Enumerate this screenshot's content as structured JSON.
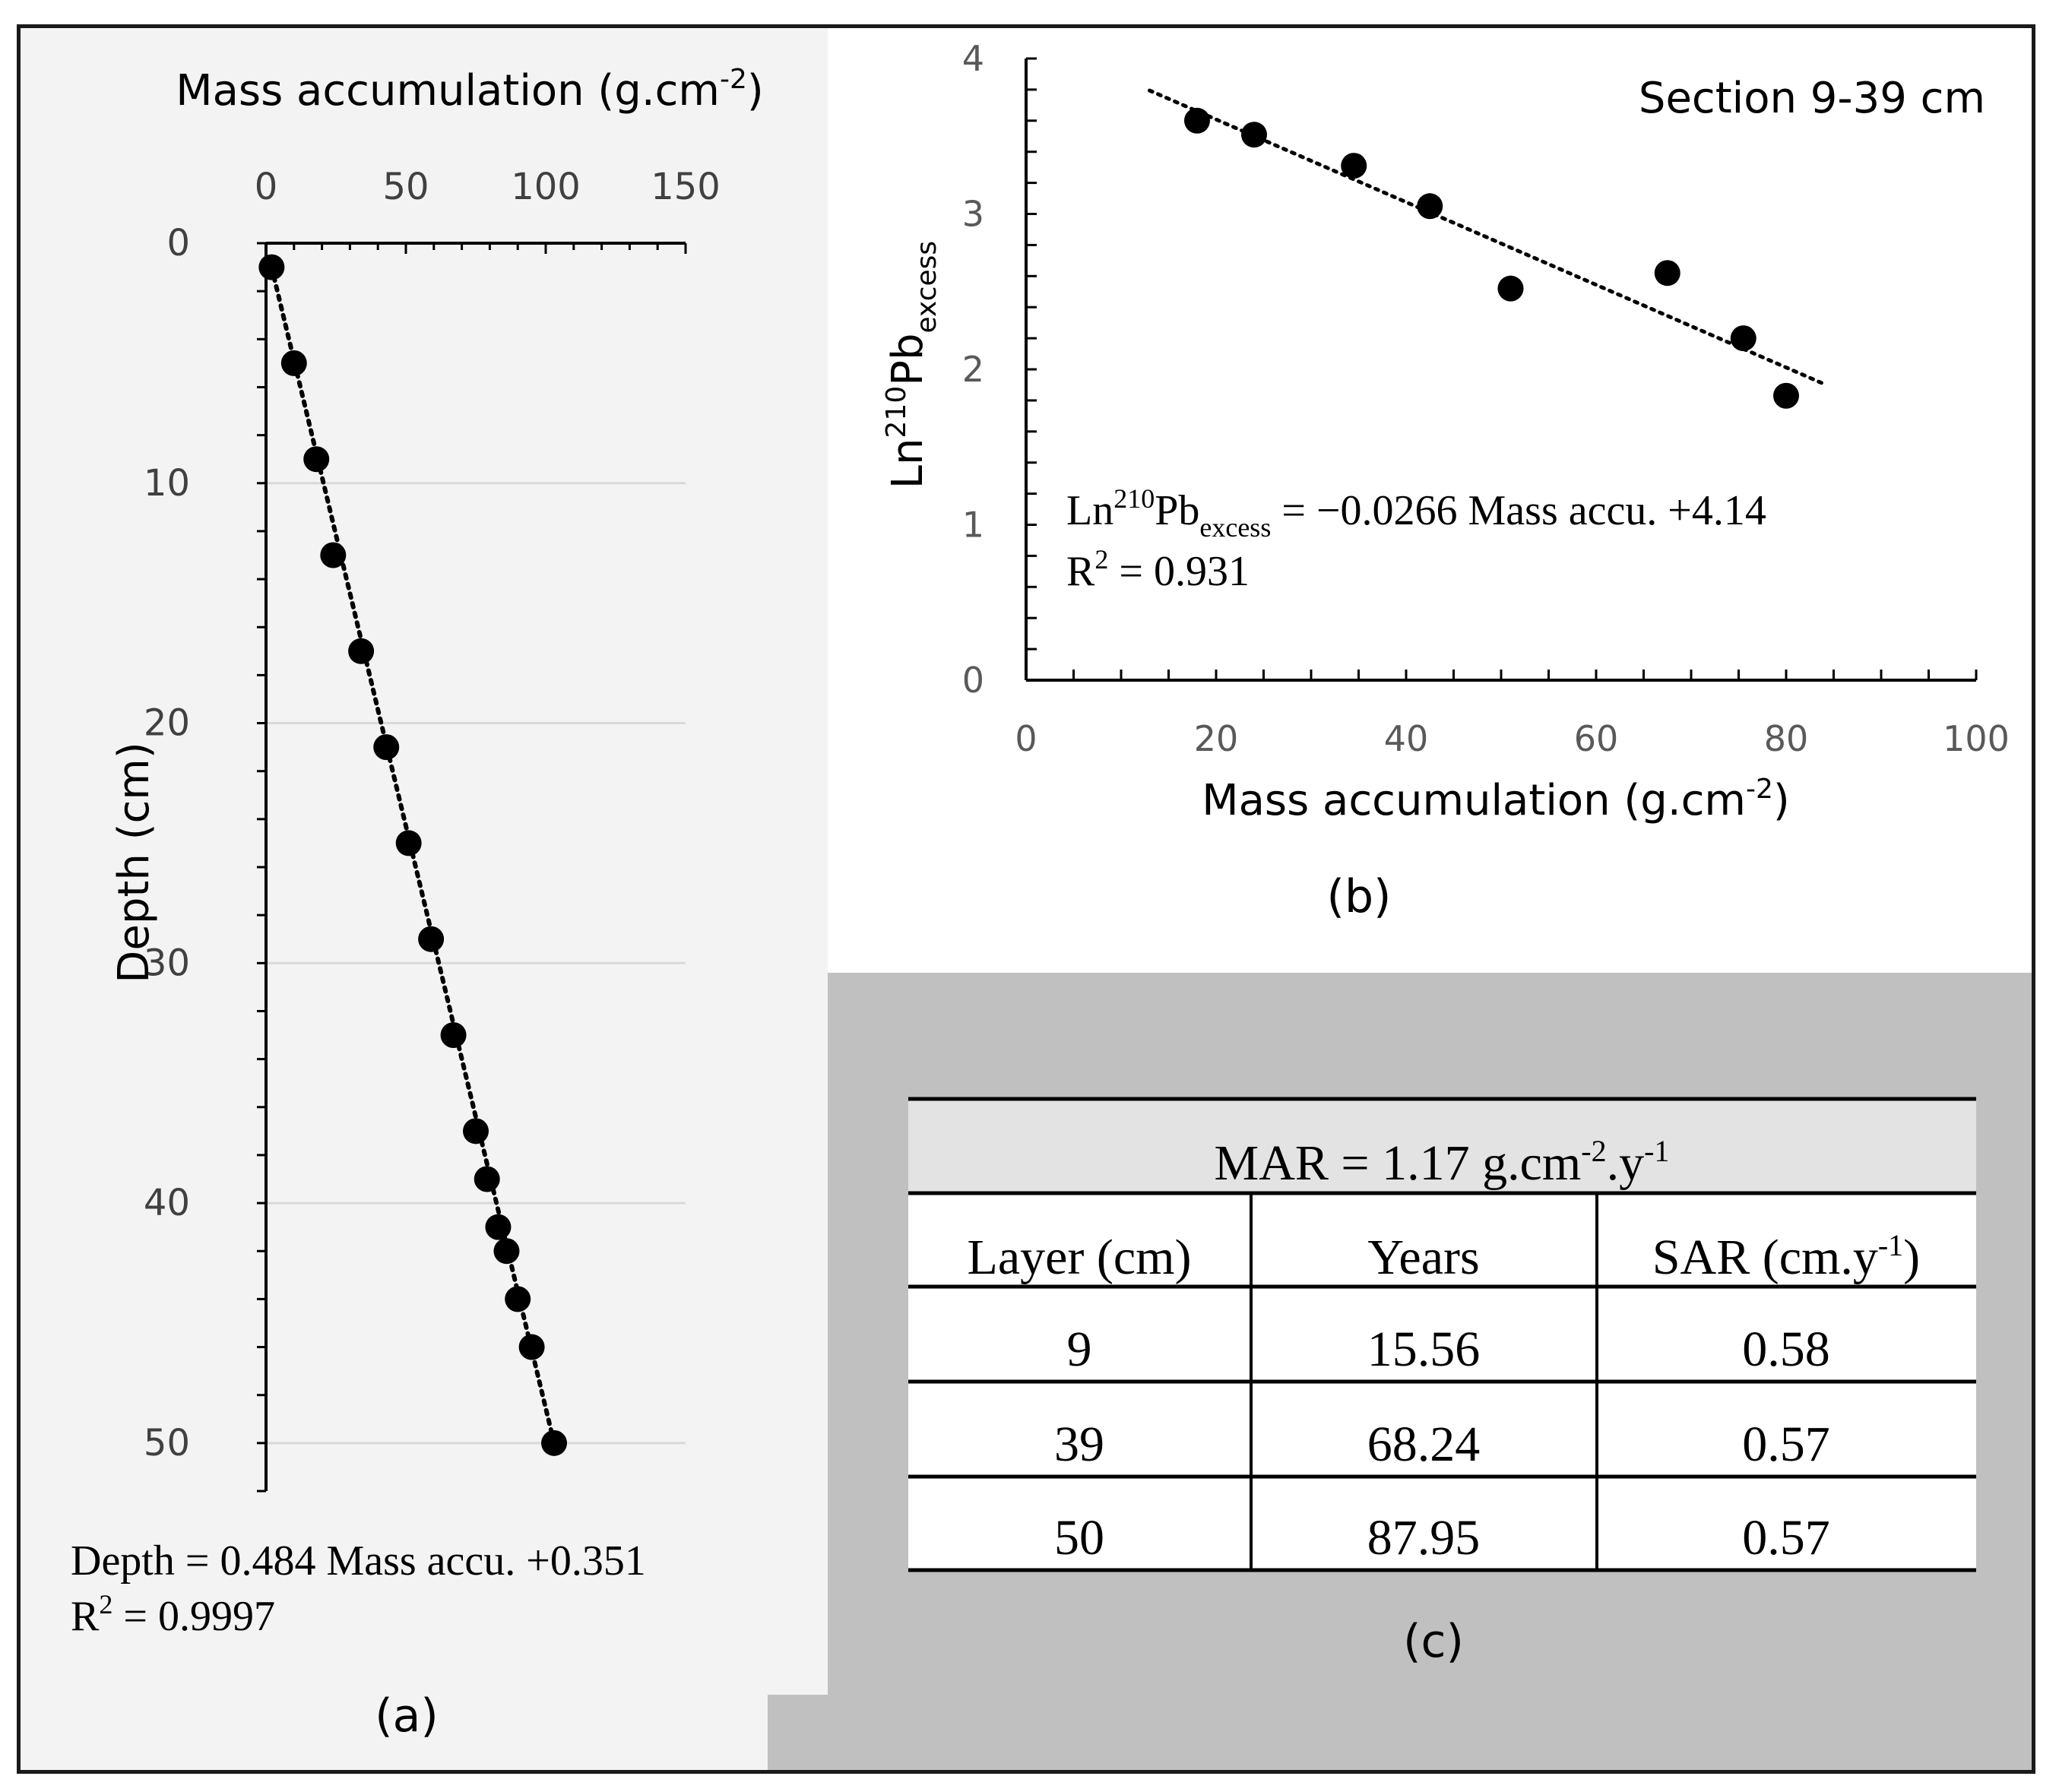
{
  "chart_data": [
    {
      "id": "a",
      "type": "scatter",
      "caption": "(a)",
      "title": "",
      "xlabel": "Mass accumulation (g.cm",
      "xlabel_sup": "-2",
      "xlabel_end": ")",
      "ylabel": "Depth (cm)",
      "xlim": [
        0,
        150
      ],
      "ylim": [
        0,
        52
      ],
      "x_ticks": [
        0,
        50,
        100,
        150
      ],
      "y_ticks": [
        0,
        10,
        20,
        30,
        40,
        50
      ],
      "y_inverted": true,
      "x_axis_position": "top",
      "grid": "horizontal",
      "points": [
        {
          "x": 2,
          "y": 1
        },
        {
          "x": 10,
          "y": 5
        },
        {
          "x": 18,
          "y": 9
        },
        {
          "x": 24,
          "y": 13
        },
        {
          "x": 34,
          "y": 17
        },
        {
          "x": 43,
          "y": 21
        },
        {
          "x": 51,
          "y": 25
        },
        {
          "x": 59,
          "y": 29
        },
        {
          "x": 67,
          "y": 33
        },
        {
          "x": 75,
          "y": 37
        },
        {
          "x": 79,
          "y": 39
        },
        {
          "x": 83,
          "y": 41
        },
        {
          "x": 86,
          "y": 42
        },
        {
          "x": 90,
          "y": 44
        },
        {
          "x": 95,
          "y": 46
        },
        {
          "x": 103,
          "y": 50
        }
      ],
      "trendline": {
        "slope": 0.484,
        "intercept": 0.351
      },
      "equation": "Depth = 0.484 Mass accu. +0.351",
      "r2_label": "R",
      "r2_sup": "2",
      "r2_value": " = 0.9997"
    },
    {
      "id": "b",
      "type": "scatter",
      "caption": "(b)",
      "title": "Section 9-39 cm",
      "xlabel": "Mass accumulation (g.cm",
      "xlabel_sup": "-2",
      "xlabel_end": ")",
      "ylabel_prefix": "Ln",
      "ylabel_sup": "210",
      "ylabel_main": "Pb",
      "ylabel_sub": "excess",
      "xlim": [
        0,
        100
      ],
      "ylim": [
        0,
        4
      ],
      "x_ticks": [
        0,
        20,
        40,
        60,
        80,
        100
      ],
      "y_ticks": [
        0,
        1,
        2,
        3,
        4
      ],
      "points": [
        {
          "x": 18,
          "y": 3.6
        },
        {
          "x": 24,
          "y": 3.51
        },
        {
          "x": 34.5,
          "y": 3.31
        },
        {
          "x": 42.5,
          "y": 3.05
        },
        {
          "x": 51,
          "y": 2.52
        },
        {
          "x": 67.5,
          "y": 2.62
        },
        {
          "x": 75.5,
          "y": 2.2
        },
        {
          "x": 80,
          "y": 1.83
        }
      ],
      "trendline": {
        "slope": -0.0266,
        "intercept": 4.14,
        "x_range": [
          13,
          84
        ]
      },
      "eq_prefix": "Ln",
      "eq_sup": "210",
      "eq_main": "Pb",
      "eq_sub": "excess",
      "eq_rest": " = −0.0266 Mass accu. +4.14",
      "r2_label": "R",
      "r2_sup": "2",
      "r2_value": " = 0.931"
    },
    {
      "id": "c",
      "type": "table",
      "caption": "(c)",
      "header_prefix": "MAR = 1.17 g.cm",
      "header_sup1": "-2",
      "header_mid": ".y",
      "header_sup2": "-1",
      "columns": [
        "Layer (cm)",
        "Years",
        "SAR (cm.y"
      ],
      "col3_sup": "-1",
      "col3_end": ")",
      "rows": [
        [
          "9",
          "15.56",
          "0.58"
        ],
        [
          "39",
          "68.24",
          "0.57"
        ],
        [
          "50",
          "87.95",
          "0.57"
        ]
      ]
    }
  ]
}
